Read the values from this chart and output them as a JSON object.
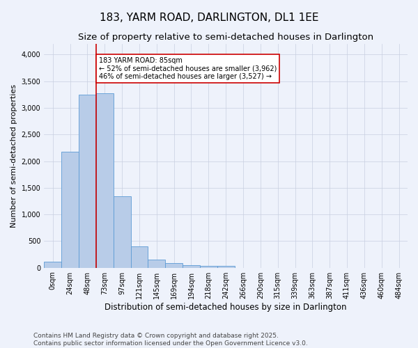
{
  "title": "183, YARM ROAD, DARLINGTON, DL1 1EE",
  "subtitle": "Size of property relative to semi-detached houses in Darlington",
  "xlabel": "Distribution of semi-detached houses by size in Darlington",
  "ylabel": "Number of semi-detached properties",
  "bar_labels": [
    "0sqm",
    "24sqm",
    "48sqm",
    "73sqm",
    "97sqm",
    "121sqm",
    "145sqm",
    "169sqm",
    "194sqm",
    "218sqm",
    "242sqm",
    "266sqm",
    "290sqm",
    "315sqm",
    "339sqm",
    "363sqm",
    "387sqm",
    "411sqm",
    "436sqm",
    "460sqm",
    "484sqm"
  ],
  "bar_values": [
    110,
    2175,
    3250,
    3280,
    1340,
    400,
    155,
    90,
    50,
    40,
    30,
    0,
    0,
    0,
    0,
    0,
    0,
    0,
    0,
    0,
    0
  ],
  "bar_color": "#b8cce8",
  "bar_edge_color": "#5b9bd5",
  "annotation_text": "183 YARM ROAD: 85sqm\n← 52% of semi-detached houses are smaller (3,962)\n46% of semi-detached houses are larger (3,527) →",
  "annotation_box_color": "#ffffff",
  "annotation_box_edge": "#cc0000",
  "vline_color": "#cc0000",
  "ylim": [
    0,
    4200
  ],
  "footer": "Contains HM Land Registry data © Crown copyright and database right 2025.\nContains public sector information licensed under the Open Government Licence v3.0.",
  "bg_color": "#eef2fb",
  "grid_color": "#c8cfe0",
  "title_fontsize": 11,
  "subtitle_fontsize": 9.5,
  "axis_label_fontsize": 8.5,
  "tick_fontsize": 7,
  "footer_fontsize": 6.5,
  "ylabel_fontsize": 8
}
